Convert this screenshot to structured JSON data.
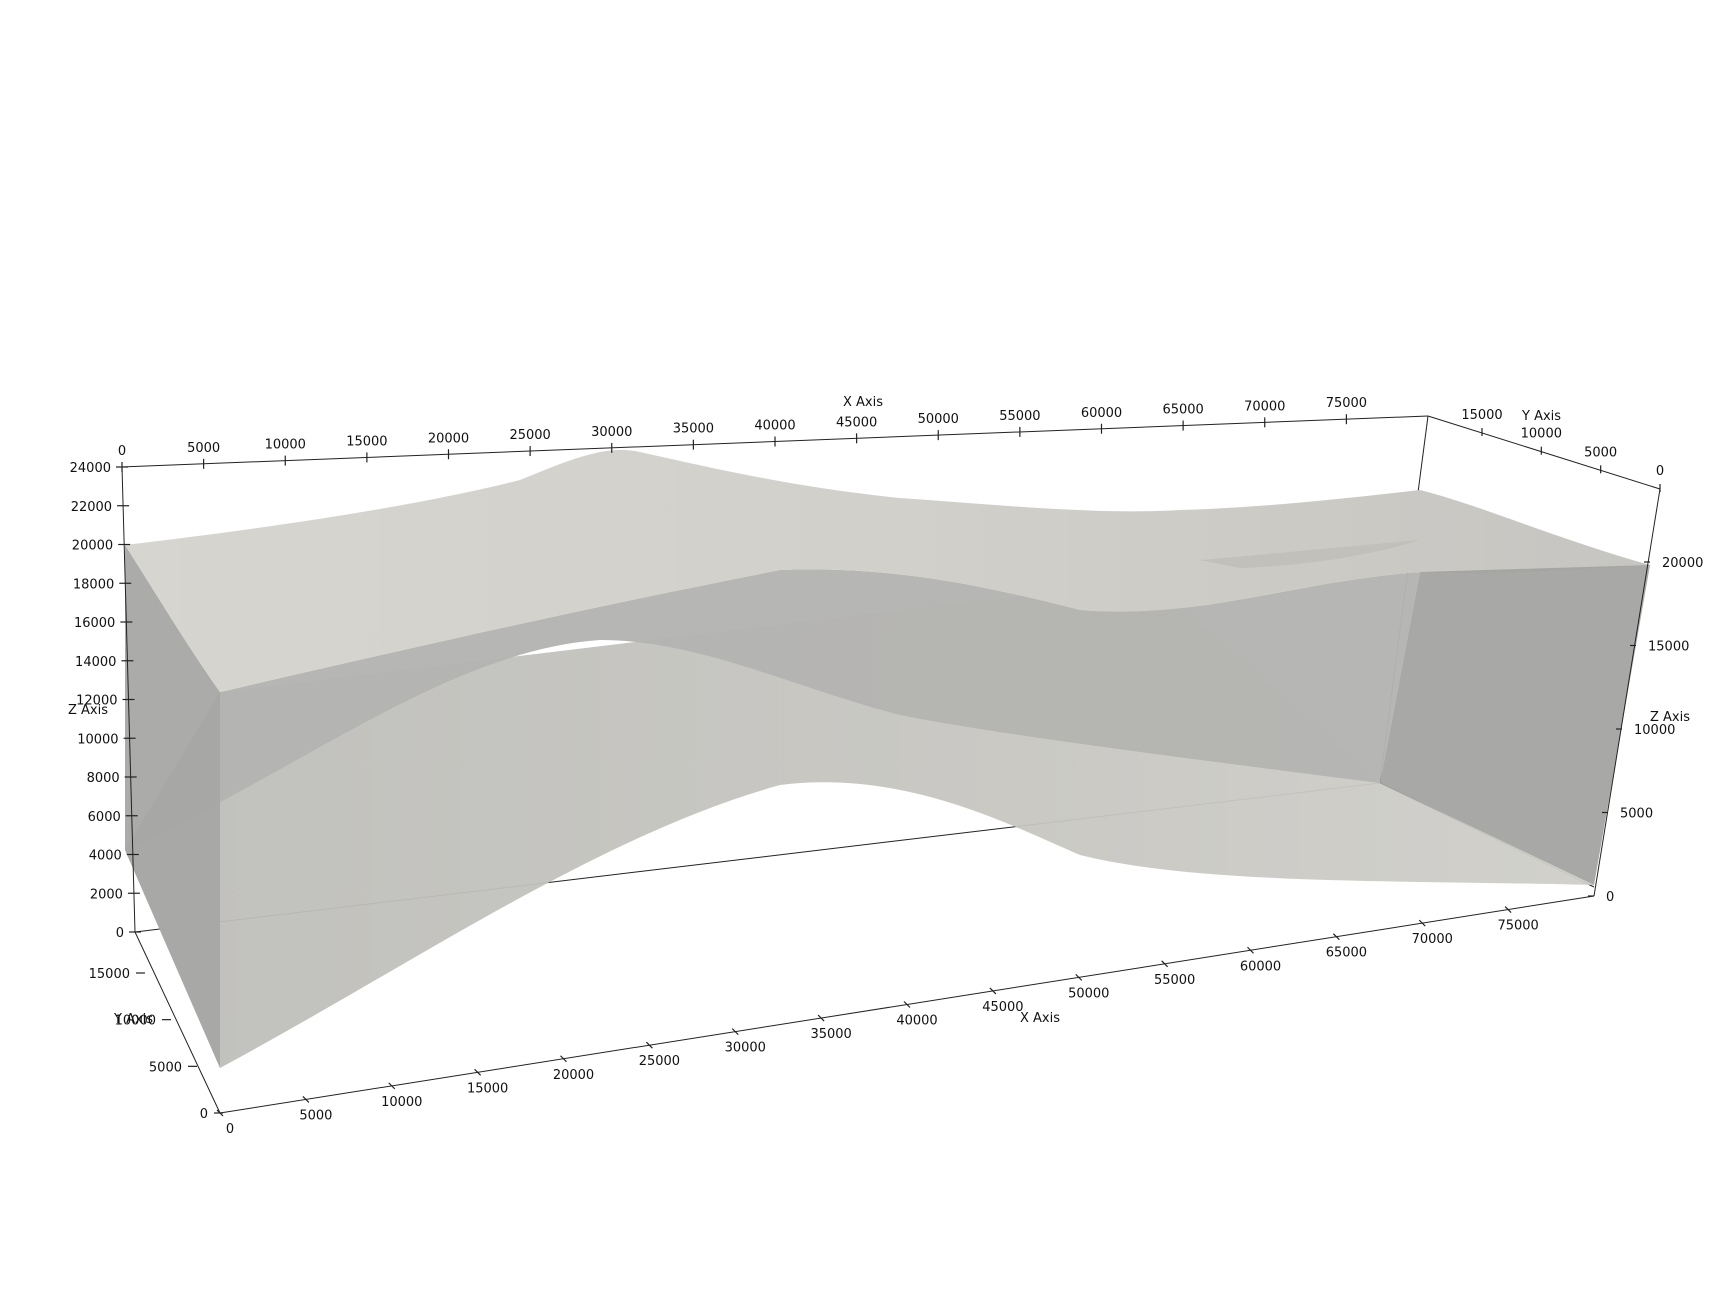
{
  "axes": {
    "x": {
      "title": "X Axis",
      "ticks": [
        "0",
        "5000",
        "10000",
        "15000",
        "20000",
        "25000",
        "30000",
        "35000",
        "40000",
        "45000",
        "50000",
        "55000",
        "60000",
        "65000",
        "70000",
        "75000"
      ]
    },
    "y": {
      "title": "Y Axis",
      "ticks": [
        "0",
        "5000",
        "10000",
        "15000"
      ]
    },
    "z": {
      "title": "Z Axis",
      "left_ticks": [
        "0",
        "2000",
        "4000",
        "6000",
        "8000",
        "10000",
        "12000",
        "14000",
        "16000",
        "18000",
        "20000",
        "22000",
        "24000"
      ],
      "right_ticks": [
        "0",
        "5000",
        "10000",
        "15000",
        "20000"
      ]
    }
  },
  "colors": {
    "background": "#ffffff",
    "surface_top": "#d1cfc9",
    "surface_mid": "#b3b3b1",
    "surface_low": "#c4c3be",
    "side_face": "#a6a6a4",
    "edges": "#222222"
  }
}
